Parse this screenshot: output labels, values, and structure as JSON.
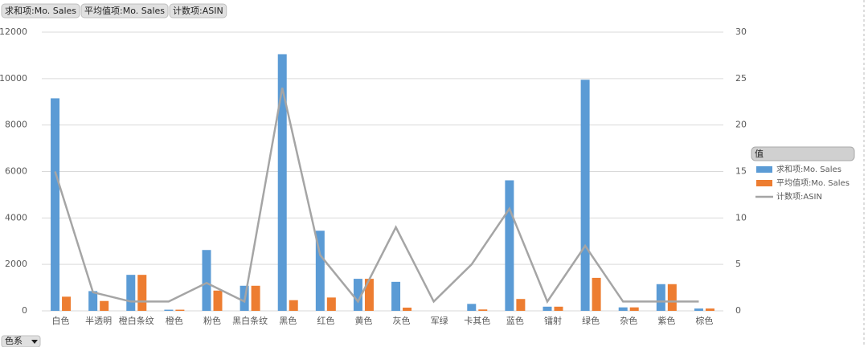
{
  "chart_data": {
    "type": "bar",
    "value_fields": [
      "求和项:Mo. Sales",
      "平均值项:Mo. Sales",
      "计数项:ASIN"
    ],
    "axis_field": "色系",
    "legend_title": "值",
    "categories": [
      "白色",
      "半透明",
      "橙白条纹",
      "橙色",
      "粉色",
      "黑白条纹",
      "黑色",
      "红色",
      "黄色",
      "灰色",
      "军绿",
      "卡其色",
      "蓝色",
      "镭射",
      "绿色",
      "杂色",
      "紫色",
      "棕色"
    ],
    "series": [
      {
        "name": "求和项:Mo. Sales",
        "color": "#5b9bd5",
        "values": [
          9150,
          850,
          1550,
          50,
          2620,
          1080,
          11050,
          3450,
          1380,
          1250,
          0,
          300,
          5620,
          180,
          9950,
          150,
          1150,
          100
        ]
      },
      {
        "name": "平均值项:Mo. Sales",
        "color": "#ed7d31",
        "values": [
          610,
          425,
          1550,
          50,
          873,
          1080,
          460,
          575,
          1380,
          139,
          0,
          60,
          511,
          180,
          1421,
          150,
          1150,
          100
        ]
      },
      {
        "name": "计数项:ASIN",
        "color": "#a5a5a5",
        "type": "line",
        "axis": "y2",
        "values": [
          15,
          2,
          1,
          1,
          3,
          1,
          24,
          6,
          1,
          9,
          1,
          5,
          11,
          1,
          7,
          1,
          1,
          1
        ]
      }
    ],
    "ylim": [
      0,
      12000
    ],
    "yticks": [
      0,
      2000,
      4000,
      6000,
      8000,
      10000,
      12000
    ],
    "y2lim": [
      0,
      30
    ],
    "y2ticks": [
      0,
      5,
      10,
      15,
      20,
      25,
      30
    ],
    "grid": true,
    "legend": "right"
  }
}
